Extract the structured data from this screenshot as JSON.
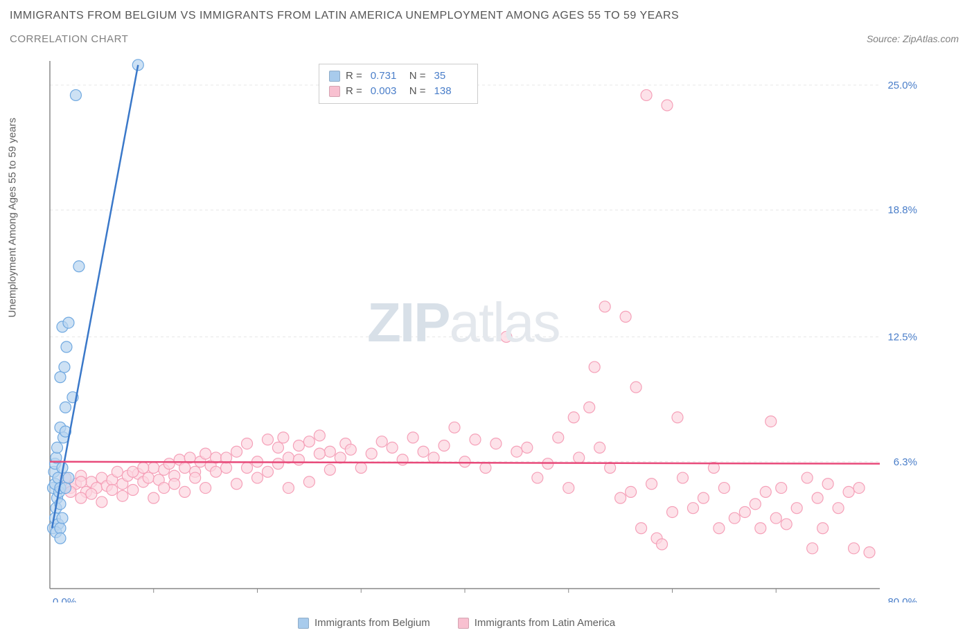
{
  "title": "IMMIGRANTS FROM BELGIUM VS IMMIGRANTS FROM LATIN AMERICA UNEMPLOYMENT AMONG AGES 55 TO 59 YEARS",
  "subtitle": "CORRELATION CHART",
  "source": "Source: ZipAtlas.com",
  "y_axis_label": "Unemployment Among Ages 55 to 59 years",
  "watermark_a": "ZIP",
  "watermark_b": "atlas",
  "chart": {
    "type": "scatter",
    "xlim": [
      0,
      80
    ],
    "ylim": [
      0,
      26.2
    ],
    "y_ticks": [
      {
        "v": 6.3,
        "label": "6.3%"
      },
      {
        "v": 12.5,
        "label": "12.5%"
      },
      {
        "v": 18.8,
        "label": "18.8%"
      },
      {
        "v": 25.0,
        "label": "25.0%"
      }
    ],
    "x_tick_left": "0.0%",
    "x_tick_right": "80.0%",
    "x_tick_marks": [
      10,
      20,
      30,
      40,
      50,
      60,
      70
    ],
    "axis_color": "#888888",
    "grid_color": "#e6e6e6",
    "background_color": "#ffffff",
    "series": [
      {
        "name": "Immigrants from Belgium",
        "color_fill": "#b8d4f0",
        "color_stroke": "#6fa8e0",
        "line_color": "#3a78c9",
        "R": "0.731",
        "N": "35",
        "regression": {
          "x1": 0.2,
          "y1": 3.0,
          "x2": 8.5,
          "y2": 26.0
        },
        "points": [
          [
            0.3,
            5.0
          ],
          [
            0.5,
            5.2
          ],
          [
            0.7,
            4.5
          ],
          [
            0.4,
            5.8
          ],
          [
            0.6,
            4.0
          ],
          [
            0.8,
            5.5
          ],
          [
            0.5,
            6.2
          ],
          [
            0.9,
            4.8
          ],
          [
            0.6,
            6.5
          ],
          [
            1.0,
            5.0
          ],
          [
            0.7,
            7.0
          ],
          [
            1.2,
            6.0
          ],
          [
            1.0,
            8.0
          ],
          [
            1.3,
            7.5
          ],
          [
            1.5,
            9.0
          ],
          [
            1.0,
            10.5
          ],
          [
            1.4,
            11.0
          ],
          [
            1.6,
            12.0
          ],
          [
            1.2,
            13.0
          ],
          [
            1.8,
            13.2
          ],
          [
            0.3,
            3.0
          ],
          [
            0.5,
            3.5
          ],
          [
            0.8,
            3.2
          ],
          [
            0.6,
            2.8
          ],
          [
            1.0,
            3.0
          ],
          [
            1.2,
            3.5
          ],
          [
            1.0,
            4.2
          ],
          [
            1.5,
            5.0
          ],
          [
            1.8,
            5.5
          ],
          [
            2.2,
            9.5
          ],
          [
            2.8,
            16.0
          ],
          [
            1.0,
            2.5
          ],
          [
            1.5,
            7.8
          ],
          [
            2.5,
            24.5
          ],
          [
            8.5,
            26.0
          ]
        ]
      },
      {
        "name": "Immigrants from Latin America",
        "color_fill": "#fcd5df",
        "color_stroke": "#f5a0b8",
        "line_color": "#e84a7a",
        "R": "0.003",
        "N": "138",
        "regression": {
          "x1": 0.0,
          "y1": 6.3,
          "x2": 80.0,
          "y2": 6.2
        },
        "points": [
          [
            1.5,
            5.5
          ],
          [
            2,
            5.0
          ],
          [
            2.5,
            5.2
          ],
          [
            3,
            5.6
          ],
          [
            3.5,
            4.8
          ],
          [
            4,
            5.3
          ],
          [
            4.5,
            5.0
          ],
          [
            5,
            5.5
          ],
          [
            5.5,
            5.1
          ],
          [
            6,
            5.4
          ],
          [
            6.5,
            5.8
          ],
          [
            7,
            5.2
          ],
          [
            7.5,
            5.6
          ],
          [
            8,
            4.9
          ],
          [
            8.5,
            5.7
          ],
          [
            9,
            5.3
          ],
          [
            9.5,
            5.5
          ],
          [
            10,
            6.0
          ],
          [
            10.5,
            5.4
          ],
          [
            11,
            5.9
          ],
          [
            11.5,
            6.2
          ],
          [
            12,
            5.6
          ],
          [
            12.5,
            6.4
          ],
          [
            13,
            6.0
          ],
          [
            13.5,
            6.5
          ],
          [
            14,
            5.8
          ],
          [
            14.5,
            6.3
          ],
          [
            15,
            6.7
          ],
          [
            15.5,
            6.1
          ],
          [
            16,
            6.5
          ],
          [
            17,
            6.0
          ],
          [
            18,
            6.8
          ],
          [
            19,
            7.2
          ],
          [
            20,
            6.3
          ],
          [
            21,
            7.4
          ],
          [
            22,
            7.0
          ],
          [
            22.5,
            7.5
          ],
          [
            23,
            6.5
          ],
          [
            24,
            7.1
          ],
          [
            25,
            7.3
          ],
          [
            26,
            7.6
          ],
          [
            27,
            6.8
          ],
          [
            28,
            6.5
          ],
          [
            28.5,
            7.2
          ],
          [
            29,
            6.9
          ],
          [
            30,
            6.0
          ],
          [
            31,
            6.7
          ],
          [
            32,
            7.3
          ],
          [
            33,
            7.0
          ],
          [
            34,
            6.4
          ],
          [
            35,
            7.5
          ],
          [
            36,
            6.8
          ],
          [
            37,
            6.5
          ],
          [
            38,
            7.1
          ],
          [
            39,
            8.0
          ],
          [
            40,
            6.3
          ],
          [
            41,
            7.4
          ],
          [
            42,
            6.0
          ],
          [
            43,
            7.2
          ],
          [
            44,
            12.5
          ],
          [
            45,
            6.8
          ],
          [
            46,
            7.0
          ],
          [
            47,
            5.5
          ],
          [
            48,
            6.2
          ],
          [
            49,
            7.5
          ],
          [
            50,
            5.0
          ],
          [
            50.5,
            8.5
          ],
          [
            51,
            6.5
          ],
          [
            52,
            9.0
          ],
          [
            52.5,
            11.0
          ],
          [
            53,
            7.0
          ],
          [
            53.5,
            14.0
          ],
          [
            54,
            6.0
          ],
          [
            55,
            4.5
          ],
          [
            55.5,
            13.5
          ],
          [
            56,
            4.8
          ],
          [
            56.5,
            10.0
          ],
          [
            57,
            3.0
          ],
          [
            57.5,
            24.5
          ],
          [
            58,
            5.2
          ],
          [
            58.5,
            2.5
          ],
          [
            59,
            2.2
          ],
          [
            59.5,
            24.0
          ],
          [
            60,
            3.8
          ],
          [
            60.5,
            8.5
          ],
          [
            61,
            5.5
          ],
          [
            62,
            4.0
          ],
          [
            63,
            4.5
          ],
          [
            64,
            6.0
          ],
          [
            64.5,
            3.0
          ],
          [
            65,
            5.0
          ],
          [
            66,
            3.5
          ],
          [
            67,
            3.8
          ],
          [
            68,
            4.2
          ],
          [
            68.5,
            3.0
          ],
          [
            69,
            4.8
          ],
          [
            69.5,
            8.3
          ],
          [
            70,
            3.5
          ],
          [
            70.5,
            5.0
          ],
          [
            71,
            3.2
          ],
          [
            72,
            4.0
          ],
          [
            73,
            5.5
          ],
          [
            73.5,
            2.0
          ],
          [
            74,
            4.5
          ],
          [
            74.5,
            3.0
          ],
          [
            75,
            5.2
          ],
          [
            76,
            4.0
          ],
          [
            77,
            4.8
          ],
          [
            77.5,
            2.0
          ],
          [
            78,
            5.0
          ],
          [
            79,
            1.8
          ],
          [
            3,
            4.5
          ],
          [
            4,
            4.7
          ],
          [
            5,
            4.3
          ],
          [
            6,
            4.9
          ],
          [
            7,
            4.6
          ],
          [
            8,
            5.8
          ],
          [
            9,
            6.0
          ],
          [
            10,
            4.5
          ],
          [
            11,
            5.0
          ],
          [
            12,
            5.2
          ],
          [
            13,
            4.8
          ],
          [
            14,
            5.5
          ],
          [
            15,
            5.0
          ],
          [
            16,
            5.8
          ],
          [
            17,
            6.5
          ],
          [
            18,
            5.2
          ],
          [
            19,
            6.0
          ],
          [
            20,
            5.5
          ],
          [
            21,
            5.8
          ],
          [
            22,
            6.2
          ],
          [
            23,
            5.0
          ],
          [
            24,
            6.4
          ],
          [
            25,
            5.3
          ],
          [
            26,
            6.7
          ],
          [
            27,
            5.9
          ],
          [
            2,
            4.8
          ],
          [
            3,
            5.3
          ]
        ]
      }
    ]
  },
  "legend_top": [
    {
      "swatch": "#a8cbec",
      "R_label": "R =",
      "R": "0.731",
      "N_label": "N =",
      "N": "35"
    },
    {
      "swatch": "#f8c0d0",
      "R_label": "R =",
      "R": "0.003",
      "N_label": "N =",
      "N": "138"
    }
  ],
  "legend_bottom": [
    {
      "swatch": "#a8cbec",
      "label": "Immigrants from Belgium"
    },
    {
      "swatch": "#f8c0d0",
      "label": "Immigrants from Latin America"
    }
  ]
}
